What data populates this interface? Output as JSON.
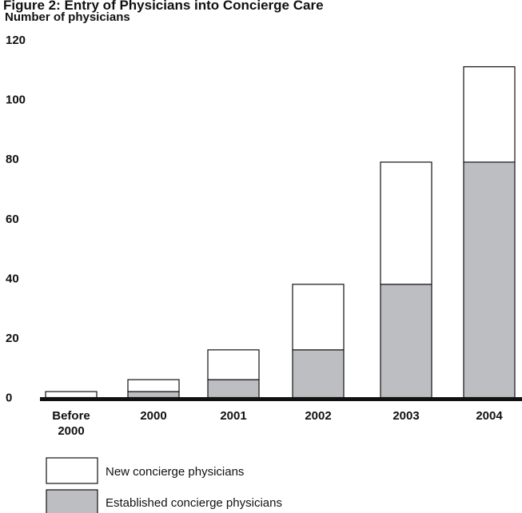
{
  "chart_data": {
    "type": "bar",
    "stacked": true,
    "title": "Figure 2: Entry of Physicians into Concierge Care",
    "ylabel": "Number of physicians",
    "xlabel": "",
    "ylim": [
      0,
      120
    ],
    "yticks": [
      "0",
      "20",
      "40",
      "60",
      "80",
      "100",
      "120"
    ],
    "categories": [
      [
        "Before",
        "2000"
      ],
      [
        "2000"
      ],
      [
        "2001"
      ],
      [
        "2002"
      ],
      [
        "2003"
      ],
      [
        "2004"
      ]
    ],
    "series": [
      {
        "name": "Established concierge physicians",
        "color": "#bdbec2",
        "values": [
          0,
          2,
          6,
          16,
          38,
          79
        ]
      },
      {
        "name": "New concierge physicians",
        "color": "#ffffff",
        "values": [
          2,
          4,
          10,
          22,
          41,
          32
        ]
      }
    ],
    "legend": {
      "placement": "bottom-left"
    },
    "grid": false
  }
}
